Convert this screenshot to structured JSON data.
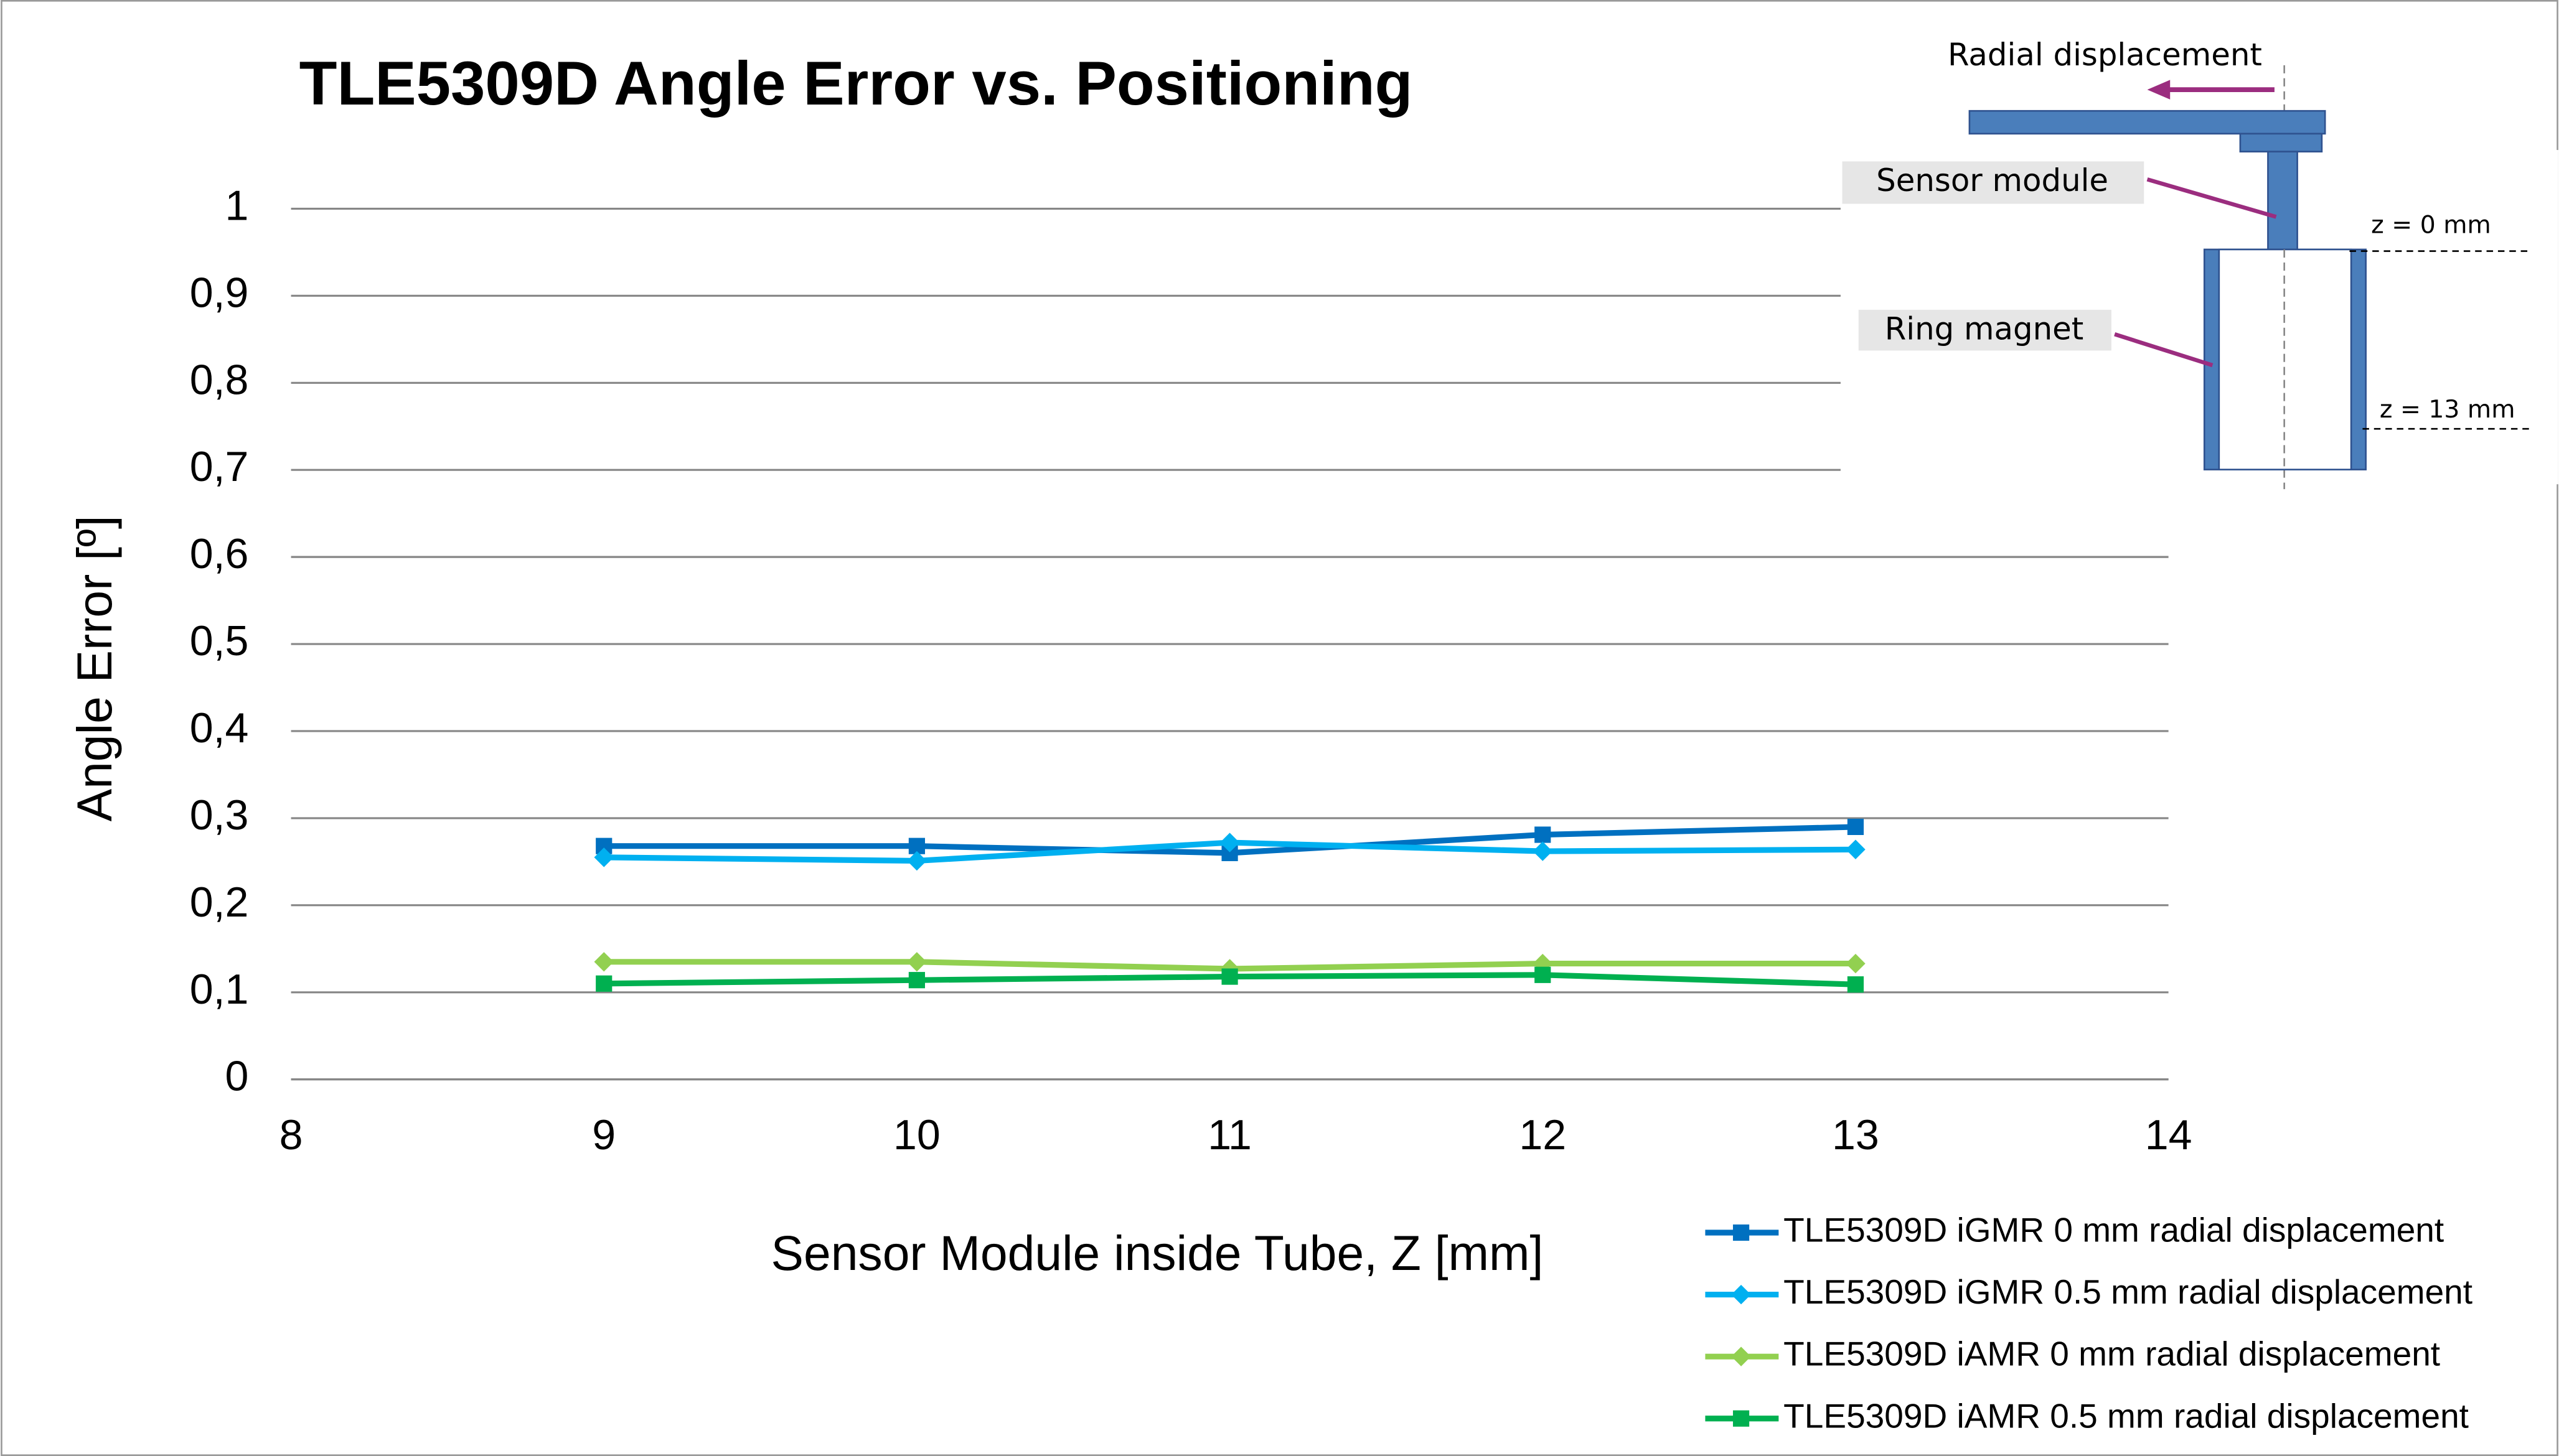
{
  "chart_data": {
    "type": "line",
    "title": "TLE5309D Angle Error vs. Positioning",
    "xlabel": "Sensor Module inside Tube, Z [mm]",
    "ylabel": "Angle Error [º]",
    "x": [
      9,
      10,
      11,
      12,
      13
    ],
    "series": [
      {
        "name": "TLE5309D iGMR 0 mm radial displacement",
        "color": "#0070c0",
        "marker": "square",
        "values": [
          0.268,
          0.268,
          0.26,
          0.281,
          0.29
        ]
      },
      {
        "name": "TLE5309D iGMR 0.5 mm radial displacement",
        "color": "#00b0f0",
        "marker": "diamond",
        "values": [
          0.255,
          0.251,
          0.272,
          0.262,
          0.264
        ]
      },
      {
        "name": "TLE5309D iAMR 0 mm radial displacement",
        "color": "#92d050",
        "marker": "diamond",
        "values": [
          0.135,
          0.135,
          0.127,
          0.133,
          0.133
        ]
      },
      {
        "name": "TLE5309D iAMR 0.5 mm radial displacement",
        "color": "#00b050",
        "marker": "square",
        "values": [
          0.11,
          0.114,
          0.118,
          0.12,
          0.109
        ]
      }
    ],
    "xlim": [
      8,
      14
    ],
    "xticks": [
      8,
      9,
      10,
      11,
      12,
      13,
      14
    ],
    "ylim": [
      0,
      1
    ],
    "yticks": [
      0,
      {
        "value": 0.1,
        "label": "0,1"
      },
      {
        "value": 0.2,
        "label": "0,2"
      },
      {
        "value": 0.3,
        "label": "0,3"
      },
      {
        "value": 0.4,
        "label": "0,4"
      },
      {
        "value": 0.5,
        "label": "0,5"
      },
      {
        "value": 0.6,
        "label": "0,6"
      },
      {
        "value": 0.7,
        "label": "0,7"
      },
      {
        "value": 0.8,
        "label": "0,8"
      },
      {
        "value": 0.9,
        "label": "0,9"
      },
      1
    ],
    "grid": true,
    "legend": "bottom-right",
    "annotations": [
      "Radial displacement",
      "Sensor module",
      "Ring magnet",
      "z = 0 mm",
      "z = 13 mm"
    ]
  }
}
